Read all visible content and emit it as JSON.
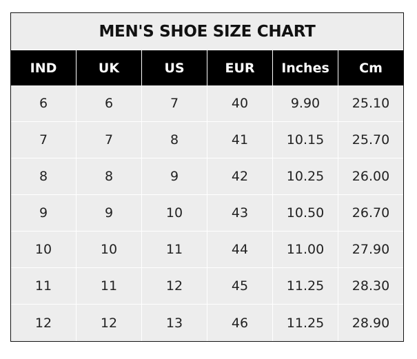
{
  "title": "MEN'S SHOE SIZE CHART",
  "headers": [
    "IND",
    "UK",
    "US",
    "EUR",
    "Inches",
    "Cm"
  ],
  "rows": [
    [
      "6",
      "6",
      "7",
      "40",
      "9.90",
      "25.10"
    ],
    [
      "7",
      "7",
      "8",
      "41",
      "10.15",
      "25.70"
    ],
    [
      "8",
      "8",
      "9",
      "42",
      "10.25",
      "26.00"
    ],
    [
      "9",
      "9",
      "10",
      "43",
      "10.50",
      "26.70"
    ],
    [
      "10",
      "10",
      "11",
      "44",
      "11.00",
      "27.90"
    ],
    [
      "11",
      "11",
      "12",
      "45",
      "11.25",
      "28.30"
    ],
    [
      "12",
      "12",
      "13",
      "46",
      "11.25",
      "28.90"
    ]
  ],
  "colors": {
    "header_bg": "#000000",
    "cell_bg": "#ededed",
    "grid": "#ffffff"
  }
}
